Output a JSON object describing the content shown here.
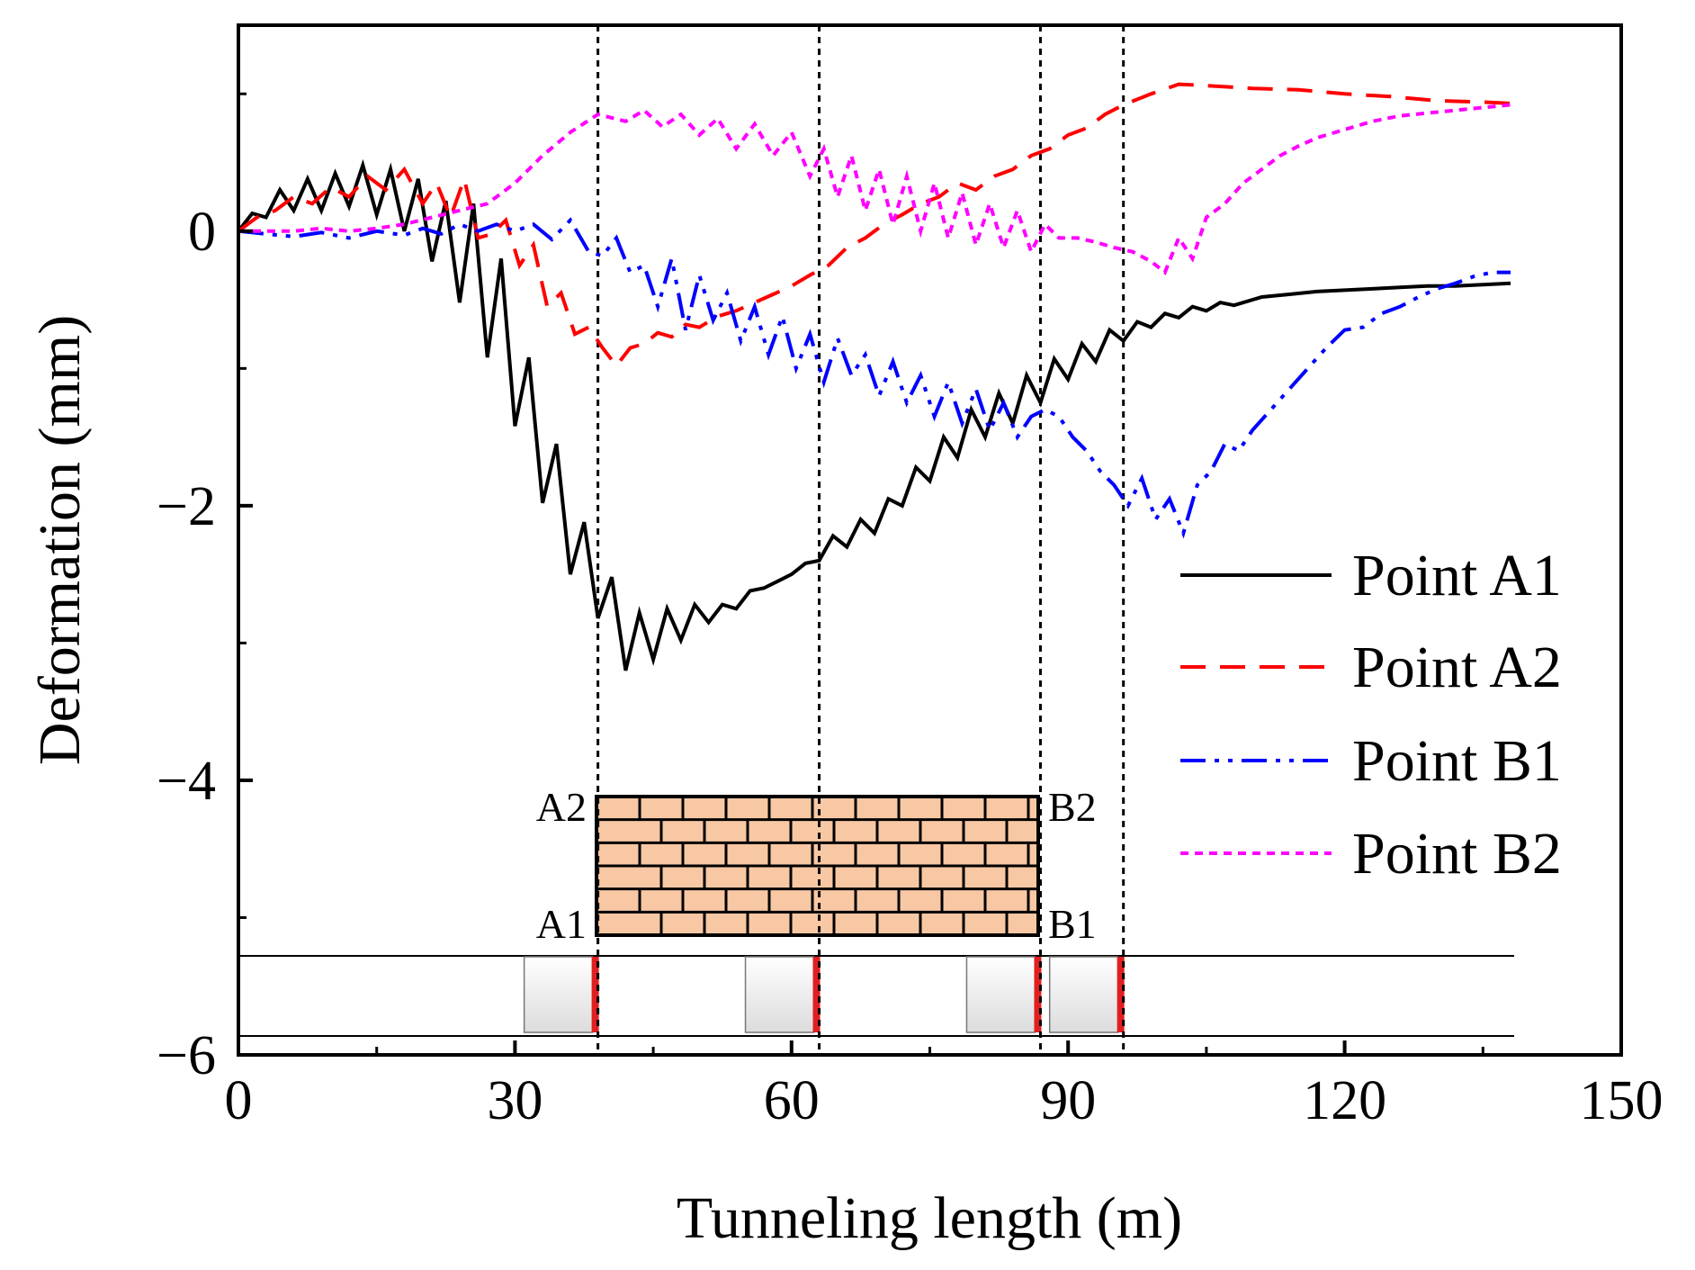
{
  "chart_data": {
    "type": "line",
    "title": "",
    "xlabel": "Tunneling length (m)",
    "ylabel": "Deformation (mm)",
    "xlim": [
      0,
      150
    ],
    "ylim": [
      -6,
      1.5
    ],
    "xticks": [
      0,
      30,
      60,
      90,
      120,
      150
    ],
    "xtick_labels": [
      "0",
      "30",
      "60",
      "90",
      "120",
      "150"
    ],
    "yticks": [
      0,
      -2,
      -4,
      -6
    ],
    "ytick_labels": [
      "0",
      "−2",
      "−4",
      "−6"
    ],
    "grid": false,
    "legend_position": "right",
    "vlines": [
      39,
      63,
      87,
      96
    ],
    "series": [
      {
        "name": "Point A1",
        "color": "#000000",
        "dash": "solid",
        "x": [
          0,
          1.5,
          3,
          4.5,
          6,
          7.5,
          9,
          10.5,
          12,
          13.5,
          15,
          16.5,
          18,
          19.5,
          21,
          22.5,
          24,
          25.5,
          27,
          28.5,
          30,
          31.5,
          33,
          34.5,
          36,
          37.5,
          39,
          40.5,
          42,
          43.5,
          45,
          46.5,
          48,
          49.5,
          51,
          52.5,
          54,
          55.5,
          57,
          58.5,
          60,
          61.5,
          63,
          64.5,
          66,
          67.5,
          69,
          70.5,
          72,
          73.5,
          75,
          76.5,
          78,
          79.5,
          81,
          82.5,
          84,
          85.5,
          87,
          88.5,
          90,
          91.5,
          93,
          94.5,
          96,
          97.5,
          99,
          100.5,
          102,
          103.5,
          105,
          106.5,
          108,
          111,
          114,
          117,
          120,
          123,
          126,
          129,
          132,
          135,
          138
        ],
        "y": [
          0,
          0.13,
          0.1,
          0.3,
          0.15,
          0.38,
          0.15,
          0.42,
          0.18,
          0.48,
          0.12,
          0.45,
          0,
          0.38,
          -0.22,
          0.22,
          -0.52,
          0.2,
          -0.92,
          -0.2,
          -1.42,
          -0.92,
          -1.98,
          -1.55,
          -2.5,
          -2.12,
          -2.82,
          -2.52,
          -3.2,
          -2.78,
          -3.12,
          -2.75,
          -2.98,
          -2.72,
          -2.85,
          -2.72,
          -2.75,
          -2.62,
          -2.6,
          -2.55,
          -2.5,
          -2.42,
          -2.4,
          -2.22,
          -2.3,
          -2.1,
          -2.2,
          -1.95,
          -2.0,
          -1.72,
          -1.82,
          -1.5,
          -1.65,
          -1.3,
          -1.5,
          -1.18,
          -1.4,
          -1.05,
          -1.25,
          -0.93,
          -1.08,
          -0.82,
          -0.95,
          -0.72,
          -0.8,
          -0.66,
          -0.7,
          -0.6,
          -0.63,
          -0.55,
          -0.58,
          -0.52,
          -0.54,
          -0.48,
          -0.46,
          -0.44,
          -0.43,
          -0.42,
          -0.41,
          -0.4,
          -0.4,
          -0.39,
          -0.38
        ]
      },
      {
        "name": "Point A2",
        "color": "#ff0000",
        "dash": "28,16",
        "x": [
          0,
          2,
          4,
          6,
          8,
          10,
          12,
          14,
          16,
          18,
          20,
          21.5,
          23,
          24.5,
          26,
          27.5,
          29,
          30.5,
          32,
          33.5,
          35,
          36.5,
          38,
          39.5,
          41,
          42.5,
          44,
          45.5,
          47,
          48.5,
          50,
          52,
          54,
          56,
          58,
          60,
          62,
          64,
          66,
          68,
          70,
          72,
          74,
          76,
          78,
          80,
          82,
          84,
          86,
          88,
          90,
          92,
          94,
          96,
          99,
          102,
          105,
          110,
          115,
          120,
          125,
          130,
          135,
          138
        ],
        "y": [
          0,
          0.1,
          0.15,
          0.25,
          0.2,
          0.32,
          0.25,
          0.4,
          0.3,
          0.45,
          0.2,
          0.35,
          0.1,
          0.38,
          -0.05,
          -0.02,
          0.08,
          -0.25,
          -0.1,
          -0.55,
          -0.45,
          -0.75,
          -0.7,
          -0.85,
          -0.98,
          -0.85,
          -0.82,
          -0.74,
          -0.77,
          -0.68,
          -0.7,
          -0.62,
          -0.58,
          -0.52,
          -0.46,
          -0.4,
          -0.32,
          -0.25,
          -0.12,
          -0.05,
          0.05,
          0.12,
          0.2,
          0.25,
          0.35,
          0.3,
          0.4,
          0.45,
          0.55,
          0.6,
          0.7,
          0.75,
          0.85,
          0.92,
          1.0,
          1.07,
          1.06,
          1.04,
          1.03,
          1.0,
          0.98,
          0.95,
          0.94,
          0.93
        ]
      },
      {
        "name": "Point B1",
        "color": "#0000ff",
        "dash": "28,10,5,10,5,10",
        "x": [
          0,
          3,
          6,
          9,
          12,
          15,
          18,
          20,
          22,
          24,
          26,
          28,
          30,
          32,
          34,
          36,
          38,
          39.5,
          41,
          42.5,
          44,
          45.5,
          47,
          48.5,
          50,
          51.5,
          53,
          54.5,
          56,
          57.5,
          59,
          60.5,
          62,
          63.5,
          65,
          66.5,
          68,
          69.5,
          71,
          72.5,
          74,
          75.5,
          77,
          78.5,
          80,
          81.5,
          83,
          84.5,
          86,
          87.5,
          89,
          90.5,
          92,
          93.5,
          95,
          96.5,
          98,
          99.5,
          101,
          102.5,
          104,
          105.5,
          107,
          108.5,
          110,
          112,
          114,
          116,
          118,
          120,
          122,
          124,
          126,
          128,
          130,
          132,
          134,
          136,
          138
        ],
        "y": [
          0,
          -0.02,
          -0.04,
          -0.01,
          -0.05,
          0.0,
          -0.03,
          0.02,
          -0.02,
          0.05,
          0.0,
          0.05,
          0.0,
          0.05,
          -0.06,
          0.08,
          -0.15,
          -0.18,
          -0.05,
          -0.3,
          -0.25,
          -0.55,
          -0.2,
          -0.72,
          -0.32,
          -0.65,
          -0.45,
          -0.8,
          -0.55,
          -0.9,
          -0.62,
          -1.0,
          -0.75,
          -1.1,
          -0.78,
          -1.05,
          -0.9,
          -1.2,
          -0.95,
          -1.25,
          -1.05,
          -1.35,
          -1.1,
          -1.4,
          -1.15,
          -1.45,
          -1.25,
          -1.5,
          -1.35,
          -1.3,
          -1.35,
          -1.5,
          -1.6,
          -1.75,
          -1.85,
          -2.0,
          -1.8,
          -2.1,
          -1.95,
          -2.2,
          -1.85,
          -1.75,
          -1.55,
          -1.6,
          -1.45,
          -1.3,
          -1.15,
          -1.0,
          -0.85,
          -0.72,
          -0.7,
          -0.6,
          -0.55,
          -0.48,
          -0.42,
          -0.38,
          -0.33,
          -0.3,
          -0.3
        ]
      },
      {
        "name": "Point B2",
        "color": "#ff00ff",
        "dash": "9,7",
        "x": [
          0,
          3,
          6,
          9,
          12,
          15,
          18,
          21,
          24,
          27,
          30,
          33,
          36,
          39,
          42,
          44,
          46,
          48,
          50,
          52,
          54,
          56,
          58,
          60,
          62,
          63.5,
          65,
          66.5,
          68,
          69.5,
          71,
          72.5,
          74,
          75.5,
          77,
          78.5,
          80,
          81.5,
          83,
          84.5,
          86,
          87.5,
          89,
          91,
          93,
          95,
          97,
          99,
          100.5,
          102,
          103.5,
          105,
          107,
          109,
          111,
          113,
          115,
          117,
          119,
          121,
          123,
          126,
          129,
          132,
          135,
          138
        ],
        "y": [
          0,
          0,
          0,
          0.02,
          0,
          0.02,
          0.05,
          0.1,
          0.15,
          0.2,
          0.35,
          0.55,
          0.72,
          0.85,
          0.8,
          0.88,
          0.76,
          0.85,
          0.7,
          0.82,
          0.6,
          0.78,
          0.55,
          0.72,
          0.4,
          0.6,
          0.25,
          0.55,
          0.15,
          0.45,
          0.05,
          0.4,
          0.0,
          0.35,
          -0.05,
          0.28,
          -0.1,
          0.2,
          -0.12,
          0.15,
          -0.15,
          0.05,
          -0.05,
          -0.05,
          -0.08,
          -0.12,
          -0.15,
          -0.22,
          -0.3,
          -0.05,
          -0.2,
          0.1,
          0.2,
          0.35,
          0.45,
          0.55,
          0.62,
          0.68,
          0.72,
          0.76,
          0.8,
          0.84,
          0.86,
          0.88,
          0.9,
          0.92
        ]
      }
    ]
  },
  "inset": {
    "label_a2": "A2",
    "label_a1": "A1",
    "label_b2": "B2",
    "label_b1": "B1",
    "building_color": "#f8c8a4",
    "shield_color": "#e02020"
  }
}
